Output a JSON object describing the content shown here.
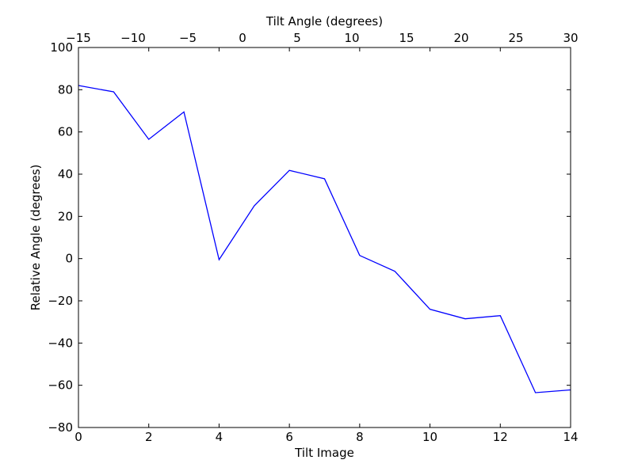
{
  "chart_data": {
    "type": "line",
    "xlabel": "Tilt Image",
    "ylabel": "Relative Angle (degrees)",
    "top_xlabel": "Tilt Angle (degrees)",
    "xlim": [
      0,
      14
    ],
    "ylim": [
      -80,
      100
    ],
    "top_xlim": [
      -15,
      30
    ],
    "x_ticks": [
      0,
      2,
      4,
      6,
      8,
      10,
      12,
      14
    ],
    "y_ticks": [
      -80,
      -60,
      -40,
      -20,
      0,
      20,
      40,
      60,
      80,
      100
    ],
    "top_x_ticks": [
      -15,
      -10,
      -5,
      0,
      5,
      10,
      15,
      20,
      25,
      30
    ],
    "grid": false,
    "series": [
      {
        "color": "#0000ff",
        "x": [
          0,
          1,
          2,
          3,
          4,
          5,
          6,
          7,
          8,
          9,
          10,
          11,
          12,
          13,
          14
        ],
        "values": [
          82,
          79,
          56.5,
          69.5,
          -0.5,
          25,
          41.8,
          37.8,
          1.5,
          -6,
          -24,
          -28.5,
          -27,
          -63.5,
          -62.2
        ]
      }
    ]
  }
}
